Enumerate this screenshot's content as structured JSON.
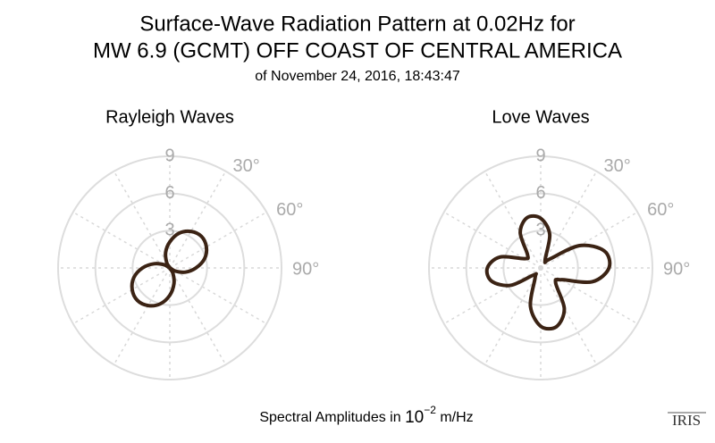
{
  "title": [
    "Surface-Wave Radiation Pattern at 0.02Hz for",
    "MW 6.9 (GCMT) OFF COAST OF CENTRAL AMERICA"
  ],
  "subtitle": "of November 24, 2016, 18:43:47",
  "caption": {
    "text": "Spectral Amplitudes in ",
    "base": "10",
    "exponent": "−2",
    "unit": " m/Hz"
  },
  "logo": "IRIS",
  "chart_data": [
    {
      "type": "polar",
      "title": "Rayleigh Waves",
      "color": "#3b2314",
      "theta": [
        0,
        15,
        30,
        45,
        60,
        75,
        90,
        105,
        120,
        135,
        150,
        165,
        180,
        195,
        210,
        225,
        240,
        255,
        270,
        285,
        300,
        315,
        330,
        345
      ],
      "r": [
        2.1,
        2.9,
        3.4,
        3.6,
        3.4,
        2.9,
        2.1,
        1.3,
        0.5,
        0,
        0.5,
        1.3,
        2.2,
        3.0,
        3.5,
        3.7,
        3.5,
        3.0,
        2.2,
        1.3,
        0.5,
        0,
        0.5,
        1.3
      ],
      "rlim": [
        0,
        9
      ],
      "rticks": [
        3,
        6,
        9
      ],
      "thetagrid": [
        0,
        30,
        60,
        90,
        120,
        150,
        180,
        210,
        240,
        270,
        300,
        330
      ],
      "thetaticks": [
        {
          "value": 30,
          "label": "30°"
        },
        {
          "value": 60,
          "label": "60°"
        },
        {
          "value": 90,
          "label": "90°"
        }
      ]
    },
    {
      "type": "polar",
      "title": "Love Waves",
      "color": "#3b2314",
      "theta": [
        0,
        15,
        30,
        45,
        60,
        75,
        90,
        105,
        120,
        135,
        150,
        165,
        180,
        195,
        210,
        225,
        240,
        255,
        270,
        285,
        300,
        315,
        330,
        345
      ],
      "r": [
        4.0,
        2.8,
        0.7,
        1.0,
        3.6,
        5.3,
        5.5,
        4.3,
        1.9,
        1.7,
        3.8,
        4.9,
        4.7,
        3.2,
        0.9,
        0.8,
        2.8,
        4.1,
        4.3,
        3.4,
        1.5,
        1.5,
        3.3,
        4.2
      ],
      "rlim": [
        0,
        9
      ],
      "rticks": [
        3,
        6,
        9
      ],
      "thetagrid": [
        0,
        30,
        60,
        90,
        120,
        150,
        180,
        210,
        240,
        270,
        300,
        330
      ],
      "thetaticks": [
        {
          "value": 30,
          "label": "30°"
        },
        {
          "value": 60,
          "label": "60°"
        },
        {
          "value": 90,
          "label": "90°"
        }
      ]
    }
  ]
}
